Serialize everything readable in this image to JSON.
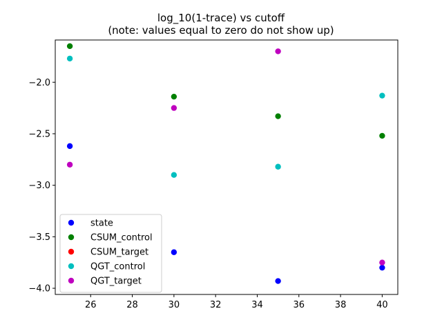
{
  "chart_data": {
    "type": "scatter",
    "title": "log_10(1-trace) vs cutoff",
    "subtitle": "(note: values equal to zero do not show up)",
    "xlabel": "",
    "ylabel": "",
    "xlim": [
      24.3,
      40.75
    ],
    "ylim": [
      -4.06,
      -1.59
    ],
    "xticks": [
      26,
      28,
      30,
      32,
      34,
      36,
      38,
      40
    ],
    "xtick_labels": [
      "26",
      "28",
      "30",
      "32",
      "34",
      "36",
      "38",
      "40"
    ],
    "yticks": [
      -2.0,
      -2.5,
      -3.0,
      -3.5,
      -4.0
    ],
    "ytick_labels": [
      "−2.0",
      "−2.5",
      "−3.0",
      "−3.5",
      "−4.0"
    ],
    "grid": false,
    "legend_position": "lower-left",
    "series": [
      {
        "name": "state",
        "color": "#0000ff",
        "points": [
          [
            25,
            -2.62
          ],
          [
            30,
            -3.65
          ],
          [
            35,
            -3.93
          ],
          [
            40,
            -3.8
          ]
        ]
      },
      {
        "name": "CSUM_control",
        "color": "#008000",
        "points": [
          [
            25,
            -1.65
          ],
          [
            30,
            -2.14
          ],
          [
            35,
            -2.33
          ],
          [
            40,
            -2.52
          ]
        ]
      },
      {
        "name": "CSUM_target",
        "color": "#ff0000",
        "points": []
      },
      {
        "name": "QGT_control",
        "color": "#00bfbf",
        "points": [
          [
            25,
            -1.77
          ],
          [
            30,
            -2.9
          ],
          [
            35,
            -2.82
          ],
          [
            40,
            -2.13
          ]
        ]
      },
      {
        "name": "QGT_target",
        "color": "#bf00bf",
        "points": [
          [
            25,
            -2.8
          ],
          [
            30,
            -2.25
          ],
          [
            35,
            -1.7
          ],
          [
            40,
            -3.75
          ]
        ]
      }
    ]
  }
}
